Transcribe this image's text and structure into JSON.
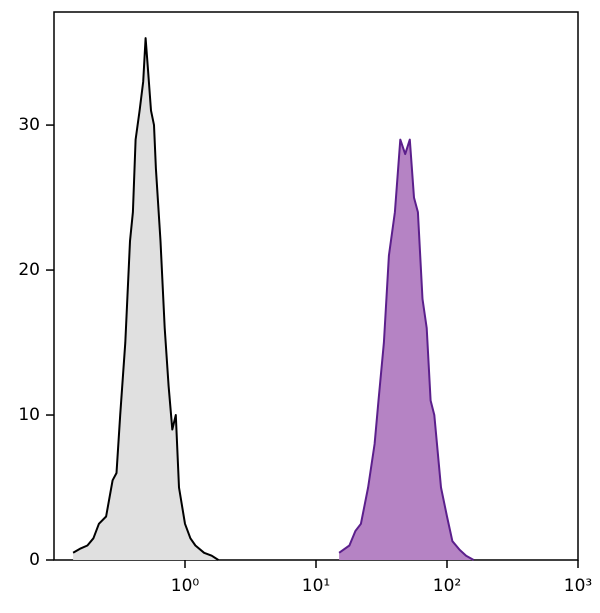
{
  "chart_data": {
    "type": "histogram-overlay",
    "xscale": "log",
    "xlim": [
      0.1,
      1000
    ],
    "ylim": [
      0,
      37.8
    ],
    "xticks": [
      {
        "value": 1,
        "label": "10⁰"
      },
      {
        "value": 10,
        "label": "10¹"
      },
      {
        "value": 100,
        "label": "10²"
      },
      {
        "value": 1000,
        "label": "10³"
      }
    ],
    "yticks": [
      0,
      10,
      20,
      30
    ],
    "series": [
      {
        "color": "#000000",
        "fill": "#e0e0e0",
        "x": [
          0.14,
          0.16,
          0.18,
          0.2,
          0.22,
          0.25,
          0.28,
          0.3,
          0.32,
          0.35,
          0.38,
          0.4,
          0.42,
          0.45,
          0.48,
          0.5,
          0.52,
          0.55,
          0.58,
          0.6,
          0.65,
          0.7,
          0.75,
          0.8,
          0.85,
          0.9,
          1.0,
          1.1,
          1.2,
          1.4,
          1.6,
          1.8
        ],
        "values": [
          0.5,
          0.8,
          1,
          1.5,
          2.5,
          3,
          5.5,
          6,
          10,
          15,
          22,
          24,
          29,
          31,
          33,
          36,
          34,
          31,
          30,
          27,
          22,
          16,
          12,
          9,
          10,
          5,
          2.5,
          1.5,
          1,
          0.5,
          0.3,
          0
        ]
      },
      {
        "color": "#5b1f8c",
        "fill": "#b583c4",
        "x": [
          15,
          18,
          20,
          22,
          25,
          28,
          30,
          33,
          36,
          40,
          44,
          48,
          52,
          56,
          60,
          65,
          70,
          75,
          80,
          90,
          100,
          110,
          125,
          140,
          160
        ],
        "values": [
          0.5,
          1,
          2,
          2.5,
          5,
          8,
          11,
          15,
          21,
          24,
          29,
          28,
          29,
          25,
          24,
          18,
          16,
          11,
          10,
          5,
          3,
          1.3,
          0.7,
          0.3,
          0
        ]
      }
    ]
  }
}
